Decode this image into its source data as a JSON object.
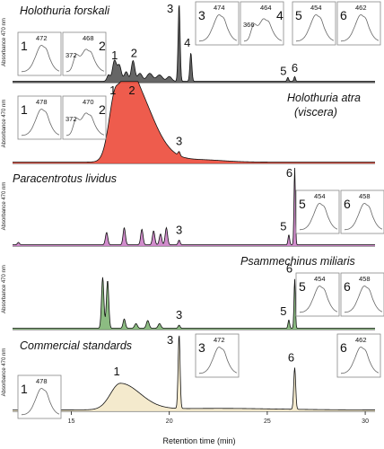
{
  "xlabel": "Retention time (min)",
  "ylabel": "Absorbance 470 nm",
  "x_ticks": [
    "15",
    "20",
    "25",
    "30"
  ],
  "chart_data": {
    "type": "line",
    "xlabel": "Retention time (min)",
    "ylabel": "Absorbance 470 nm",
    "xlim": [
      12,
      30.5
    ],
    "x_ticks": [
      15,
      20,
      25,
      30
    ],
    "panels": [
      {
        "name": "Holothuria forskali",
        "fill": "#555555",
        "peaks": [
          {
            "label": "1",
            "x": 17.3,
            "height": 0.3
          },
          {
            "label": "2",
            "x": 18.2,
            "height": 0.28
          },
          {
            "label": "3",
            "x": 20.5,
            "height": 1.0
          },
          {
            "label": "4",
            "x": 21.1,
            "height": 0.4
          },
          {
            "label": "5",
            "x": 26.1,
            "height": 0.06
          },
          {
            "label": "6",
            "x": 26.4,
            "height": 0.06
          }
        ],
        "insets": [
          {
            "peak": "1",
            "lambda": [
              "472"
            ]
          },
          {
            "peak": "2",
            "lambda": [
              "372",
              "468"
            ]
          },
          {
            "peak": "3",
            "lambda": [
              "474"
            ]
          },
          {
            "peak": "4",
            "lambda": [
              "366",
              "464"
            ]
          },
          {
            "peak": "5",
            "lambda": [
              "454"
            ]
          },
          {
            "peak": "6",
            "lambda": [
              "462"
            ]
          }
        ]
      },
      {
        "name": "Holothuria atra (viscera)",
        "fill": "#ec4a3a",
        "peaks": [
          {
            "label": "1",
            "x": 17.3,
            "height": 0.96
          },
          {
            "label": "2",
            "x": 18.0,
            "height": 0.96
          },
          {
            "label": "3",
            "x": 20.5,
            "height": 0.06
          }
        ],
        "insets": [
          {
            "peak": "1",
            "lambda": [
              "478"
            ]
          },
          {
            "peak": "2",
            "lambda": [
              "372",
              "470"
            ]
          }
        ]
      },
      {
        "name": "Paracentrotus lividus",
        "fill": "#cc7fc6",
        "peaks": [
          {
            "label": "3",
            "x": 20.5,
            "height": 0.06
          },
          {
            "label": "5",
            "x": 26.1,
            "height": 0.15
          },
          {
            "label": "6",
            "x": 26.4,
            "height": 1.0
          }
        ],
        "insets": [
          {
            "peak": "5",
            "lambda": [
              "454"
            ]
          },
          {
            "peak": "6",
            "lambda": [
              "458"
            ]
          }
        ]
      },
      {
        "name": "Psammechinus miliaris",
        "fill": "#7fb574",
        "peaks": [
          {
            "label": "3",
            "x": 20.5,
            "height": 0.04
          },
          {
            "label": "5",
            "x": 26.1,
            "height": 0.12
          },
          {
            "label": "6",
            "x": 26.4,
            "height": 0.66
          }
        ],
        "insets": [
          {
            "peak": "5",
            "lambda": [
              "454"
            ]
          },
          {
            "peak": "6",
            "lambda": [
              "458"
            ]
          }
        ]
      },
      {
        "name": "Commercial standards",
        "fill": "#f3e8c8",
        "peaks": [
          {
            "label": "1",
            "x": 17.5,
            "height": 0.36
          },
          {
            "label": "3",
            "x": 20.5,
            "height": 0.98
          },
          {
            "label": "6",
            "x": 26.4,
            "height": 0.55
          }
        ],
        "insets": [
          {
            "peak": "1",
            "lambda": [
              "478"
            ]
          },
          {
            "peak": "3",
            "lambda": [
              "472"
            ]
          },
          {
            "peak": "6",
            "lambda": [
              "462"
            ]
          }
        ]
      }
    ]
  }
}
